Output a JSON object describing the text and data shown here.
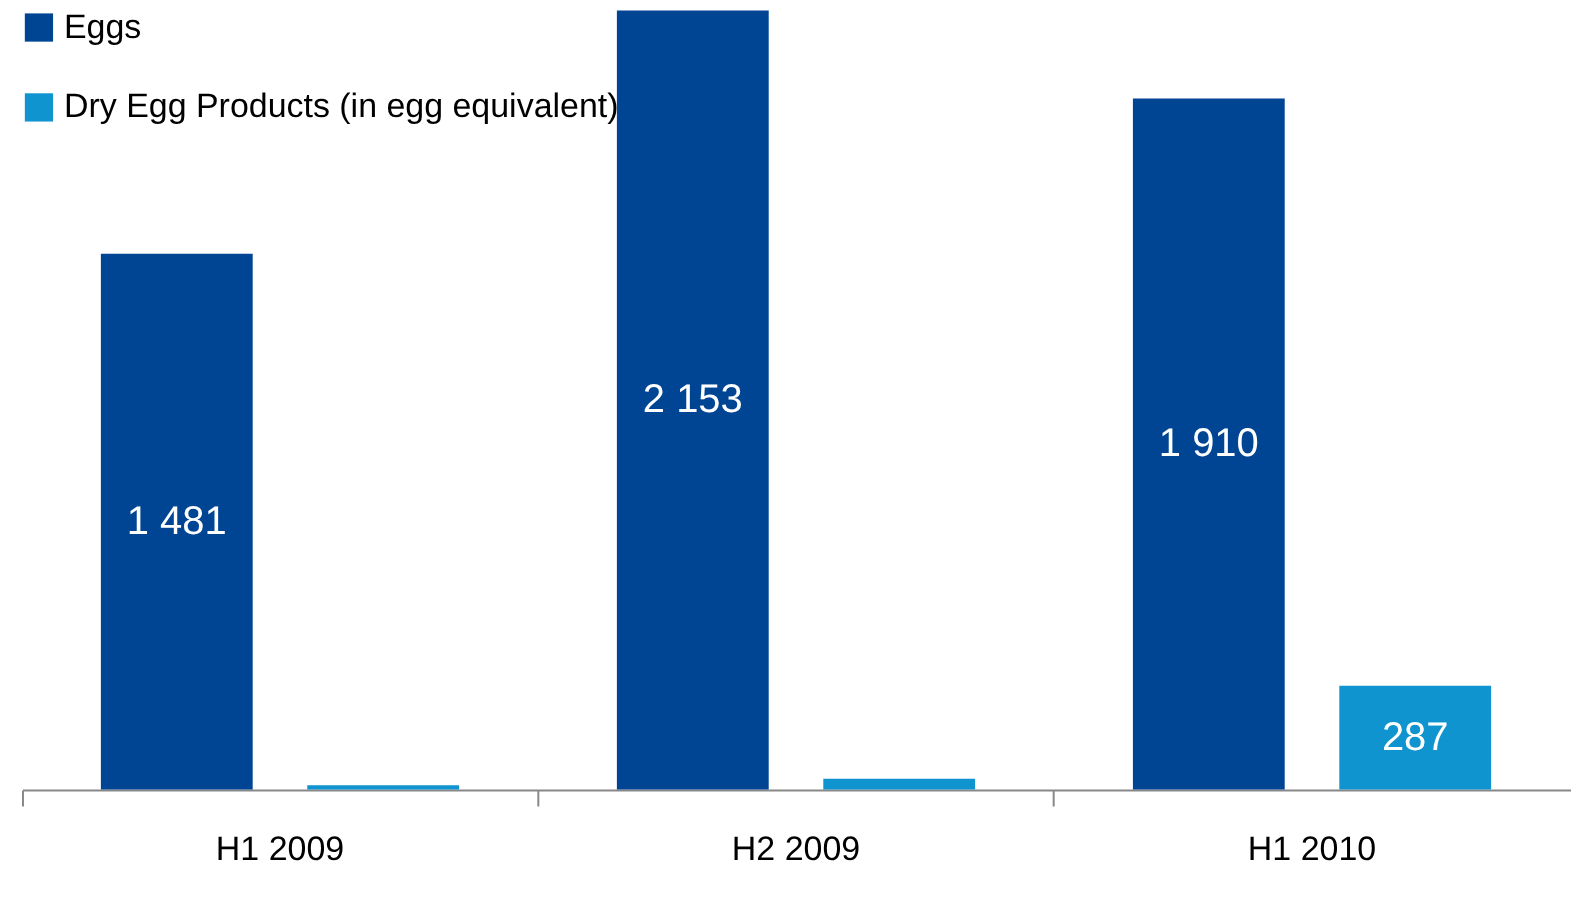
{
  "chart_data": {
    "type": "bar",
    "categories": [
      "H1 2009",
      "H2 2009",
      "H1 2010"
    ],
    "series": [
      {
        "name": "Eggs",
        "color": "#004494",
        "values": [
          1481,
          2153,
          1910
        ],
        "value_labels": [
          "1 481",
          "2 153",
          "1 910"
        ]
      },
      {
        "name": "Dry Egg Products (in egg equivalent)",
        "color": "#0f94cf",
        "values": [
          12,
          30,
          287
        ],
        "value_labels": [
          null,
          null,
          "287"
        ]
      }
    ],
    "legend": "top left",
    "grid": false
  }
}
